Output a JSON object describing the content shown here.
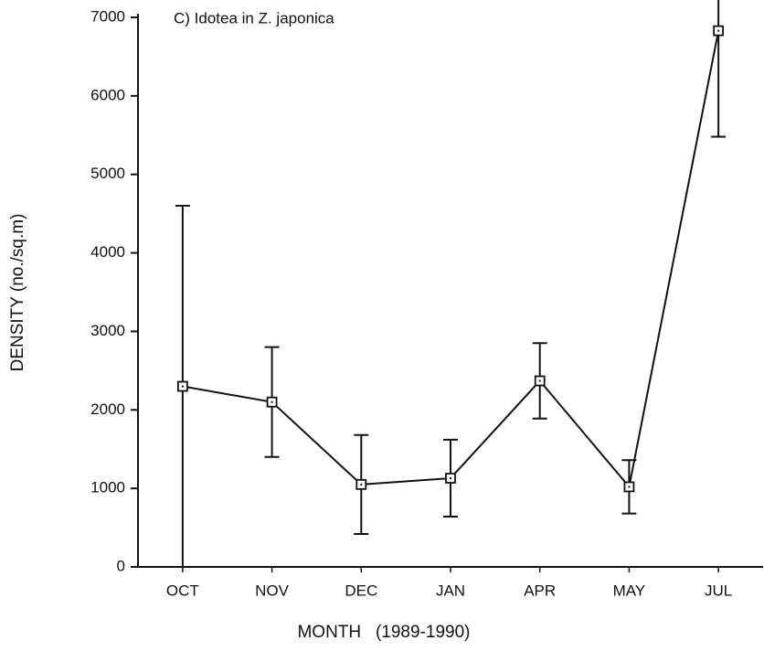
{
  "chart_data": {
    "type": "line",
    "title": "C) Idotea in Z. japonica",
    "x_label": "MONTH   (1989-1990)",
    "y_label": "DENSITY (no./sq.m)",
    "categories": [
      "OCT",
      "NOV",
      "DEC",
      "JAN",
      "APR",
      "MAY",
      "JUL"
    ],
    "series": [
      {
        "color": "#111111",
        "values": [
          2300,
          2100,
          1050,
          1130,
          2370,
          1020,
          6830
        ],
        "errors": [
          2300,
          700,
          630,
          490,
          480,
          340,
          1350
        ]
      }
    ],
    "ylim": [
      0,
      7000
    ],
    "yticks": [
      0,
      1000,
      2000,
      3000,
      4000,
      5000,
      6000,
      7000
    ],
    "grid": false
  }
}
